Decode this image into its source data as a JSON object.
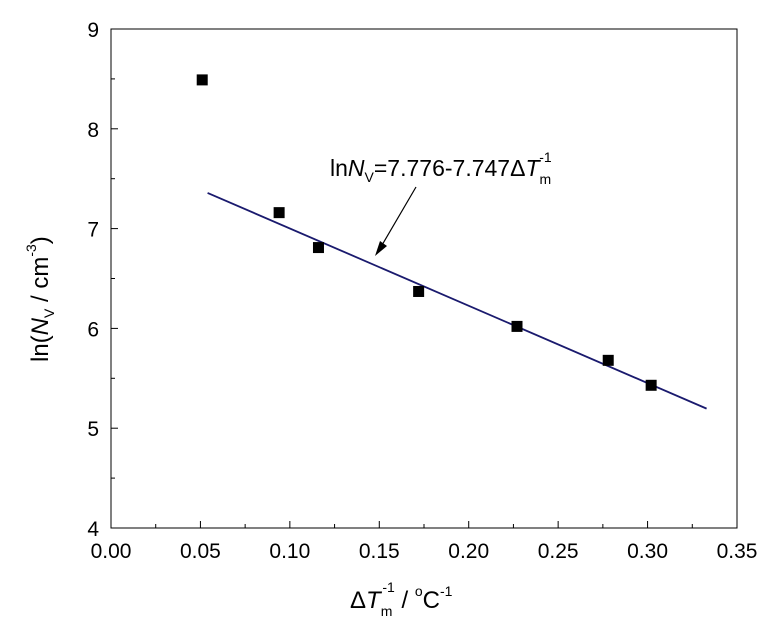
{
  "chart_data": {
    "type": "scatter",
    "xlim": [
      0.0,
      0.35
    ],
    "ylim": [
      4,
      9
    ],
    "xticks": [
      "0.00",
      "0.05",
      "0.10",
      "0.15",
      "0.20",
      "0.25",
      "0.30",
      "0.35"
    ],
    "yticks": [
      "4",
      "5",
      "6",
      "7",
      "8",
      "9"
    ],
    "xlabel": {
      "delta": "Δ",
      "var": "T",
      "sub": "m",
      "sup": "-1",
      "sep": " / ",
      "unit_deg": "o",
      "unit": "C",
      "unit_sup": "-1"
    },
    "ylabel": {
      "prefix": "ln(",
      "var": "N",
      "sub": "V",
      "mid": " / cm",
      "sup": "-3",
      "suffix": ")"
    },
    "grid": false,
    "points": [
      {
        "x": 0.051,
        "y": 8.49
      },
      {
        "x": 0.094,
        "y": 7.16
      },
      {
        "x": 0.116,
        "y": 6.81
      },
      {
        "x": 0.172,
        "y": 6.37
      },
      {
        "x": 0.227,
        "y": 6.02
      },
      {
        "x": 0.278,
        "y": 5.68
      },
      {
        "x": 0.302,
        "y": 5.43
      }
    ],
    "fit": {
      "intercept": 7.776,
      "slope": -7.747,
      "x_range": [
        0.054,
        0.333
      ],
      "color": "#1a1a6e"
    },
    "annotation": {
      "prefix": "ln",
      "var": "N",
      "sub": "V",
      "eq": "=7.776-7.747Δ",
      "var2": "T",
      "sub2": "m",
      "sup2": "-1",
      "arrow_to": {
        "x": 0.148,
        "y": 6.74
      }
    }
  }
}
